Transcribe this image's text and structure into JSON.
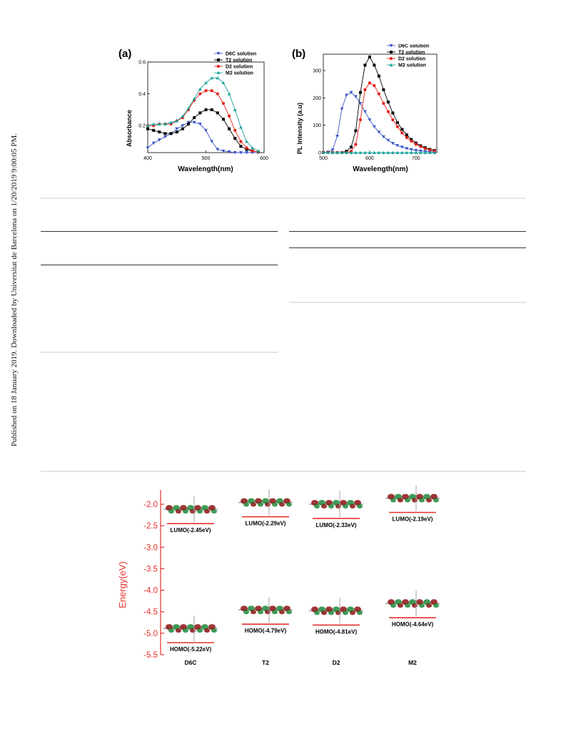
{
  "side_note": "Published on 18 January 2019. Downloaded by Universitat de Barcelona on 1/20/2019 9:00:05 PM.",
  "colors": {
    "D6C": "#3a55c8",
    "T2": "#000000",
    "D2": "#e5201a",
    "M2": "#1aa39a",
    "energy_axis": "#e5302a",
    "level_bar": "#e5302a"
  },
  "figure_a": {
    "panel_label": "(a)",
    "chart_data": {
      "type": "line",
      "xlabel": "Wavelength(nm)",
      "ylabel": "Absorbance",
      "xlim": [
        400,
        600
      ],
      "ylim": [
        0.03,
        0.6
      ],
      "xticks": [
        "400",
        "500",
        "600"
      ],
      "yticks": [
        "0.2",
        "0.4",
        "0.6"
      ],
      "legend_position": "top-right",
      "x": [
        400,
        410,
        420,
        430,
        440,
        450,
        460,
        470,
        480,
        490,
        500,
        510,
        520,
        530,
        540,
        550,
        560,
        570,
        580,
        590
      ],
      "series": [
        {
          "name": "D6C solution",
          "values": [
            0.06,
            0.09,
            0.11,
            0.13,
            0.15,
            0.18,
            0.2,
            0.22,
            0.22,
            0.21,
            0.17,
            0.1,
            0.05,
            0.04,
            0.035,
            0.03,
            0.03,
            0.03,
            0.03,
            0.03
          ]
        },
        {
          "name": "T2 solution",
          "values": [
            0.18,
            0.17,
            0.16,
            0.15,
            0.15,
            0.16,
            0.18,
            0.21,
            0.25,
            0.28,
            0.3,
            0.3,
            0.28,
            0.24,
            0.18,
            0.12,
            0.07,
            0.05,
            0.04,
            0.035
          ]
        },
        {
          "name": "D2 solution",
          "values": [
            0.2,
            0.2,
            0.21,
            0.21,
            0.21,
            0.23,
            0.25,
            0.3,
            0.36,
            0.4,
            0.42,
            0.42,
            0.4,
            0.34,
            0.26,
            0.17,
            0.1,
            0.06,
            0.04,
            0.035
          ]
        },
        {
          "name": "M2 solution",
          "values": [
            0.2,
            0.21,
            0.21,
            0.21,
            0.22,
            0.23,
            0.26,
            0.31,
            0.37,
            0.43,
            0.47,
            0.5,
            0.5,
            0.47,
            0.4,
            0.3,
            0.19,
            0.1,
            0.06,
            0.04
          ]
        }
      ]
    }
  },
  "figure_b": {
    "panel_label": "(b)",
    "chart_data": {
      "type": "line",
      "xlabel": "Wavelength(nm)",
      "ylabel": "PL Intensity (a.u)",
      "xlim": [
        500,
        745
      ],
      "ylim": [
        0,
        360
      ],
      "xticks": [
        "500",
        "600",
        "700"
      ],
      "yticks": [
        "0",
        "100",
        "200",
        "300"
      ],
      "legend_position": "top-right",
      "x": [
        500,
        510,
        520,
        530,
        540,
        550,
        560,
        570,
        580,
        590,
        600,
        610,
        620,
        630,
        640,
        650,
        660,
        670,
        680,
        690,
        700,
        710,
        720,
        730,
        740
      ],
      "series": [
        {
          "name": "D6C solution",
          "values": [
            0,
            2,
            10,
            60,
            160,
            210,
            220,
            205,
            180,
            150,
            120,
            95,
            75,
            58,
            45,
            34,
            26,
            20,
            15,
            11,
            8,
            6,
            4,
            3,
            2
          ]
        },
        {
          "name": "T2 solution",
          "values": [
            0,
            0,
            0,
            0,
            0,
            5,
            20,
            80,
            220,
            320,
            350,
            320,
            280,
            230,
            185,
            145,
            110,
            85,
            65,
            48,
            35,
            25,
            18,
            12,
            8
          ]
        },
        {
          "name": "D2 solution",
          "values": [
            0,
            0,
            0,
            0,
            0,
            0,
            5,
            30,
            120,
            230,
            255,
            245,
            215,
            180,
            150,
            120,
            95,
            72,
            55,
            42,
            30,
            22,
            15,
            10,
            6
          ]
        },
        {
          "name": "M2 solution",
          "values": [
            0,
            0,
            0,
            0,
            0,
            0,
            0,
            0,
            0,
            0,
            0,
            0,
            0,
            0,
            0,
            0,
            0,
            0,
            0,
            0,
            0,
            0,
            0,
            0,
            0
          ]
        }
      ]
    }
  },
  "figure_c": {
    "chart_data": {
      "type": "diagram",
      "ylabel": "Energy(eV)",
      "ylim": [
        -5.5,
        -1.8
      ],
      "yticks": [
        "-2.0",
        "-2.5",
        "-3.0",
        "-3.5",
        "-4.0",
        "-4.5",
        "-5.0",
        "-5.5"
      ],
      "molecules": [
        {
          "name": "D6C",
          "lumo": -2.45,
          "homo": -5.22,
          "lumo_label": "LUMO(-2.45eV)",
          "homo_label": "HOMO(-5.22eV)"
        },
        {
          "name": "T2",
          "lumo": -2.29,
          "homo": -4.79,
          "lumo_label": "LUMO(-2.29eV)",
          "homo_label": "HOMO(-4.79eV)"
        },
        {
          "name": "D2",
          "lumo": -2.33,
          "homo": -4.81,
          "lumo_label": "LUMO(-2.33eV)",
          "homo_label": "HOMO(-4.81eV)"
        },
        {
          "name": "M2",
          "lumo": -2.19,
          "homo": -4.64,
          "lumo_label": "LUMO(-2.19eV)",
          "homo_label": "HOMO(-4.64eV)"
        }
      ]
    }
  }
}
